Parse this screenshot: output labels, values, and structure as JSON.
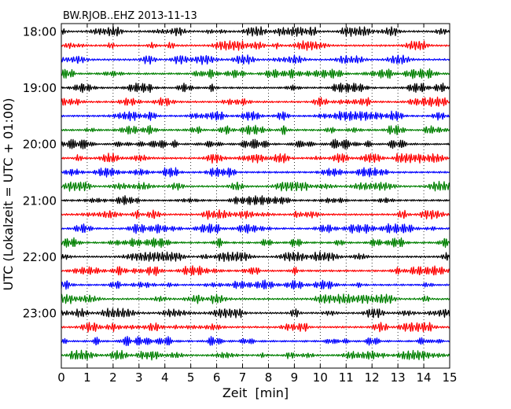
{
  "chart_data": {
    "type": "line",
    "title": "BW.RJOB..EHZ 2013-11-13",
    "xlabel": "Zeit  [min]",
    "ylabel": "UTC (Lokalzeit = UTC + 01:00)",
    "xlim": [
      0,
      15
    ],
    "x_ticks": [
      0,
      1,
      2,
      3,
      4,
      5,
      6,
      7,
      8,
      9,
      10,
      11,
      12,
      13,
      14,
      15
    ],
    "x_tick_labels": [
      "0",
      "1",
      "2",
      "3",
      "4",
      "5",
      "6",
      "7",
      "8",
      "9",
      "10",
      "11",
      "12",
      "13",
      "14",
      "15"
    ],
    "y_tick_labels": [
      "18:00",
      "19:00",
      "20:00",
      "21:00",
      "22:00",
      "23:00"
    ],
    "rows_per_hour": 4,
    "minutes_per_row": 15,
    "row_start_times": [
      "18:00",
      "18:15",
      "18:30",
      "18:45",
      "19:00",
      "19:15",
      "19:30",
      "19:45",
      "20:00",
      "20:15",
      "20:30",
      "20:45",
      "21:00",
      "21:15",
      "21:30",
      "21:45",
      "22:00",
      "22:15",
      "22:30",
      "22:45",
      "23:00",
      "23:15",
      "23:30",
      "23:45"
    ],
    "trace_colors": [
      "#000000",
      "#ff0000",
      "#0000ff",
      "#008000"
    ],
    "grid": "vertical dotted lines at each minute",
    "legend": "none"
  }
}
